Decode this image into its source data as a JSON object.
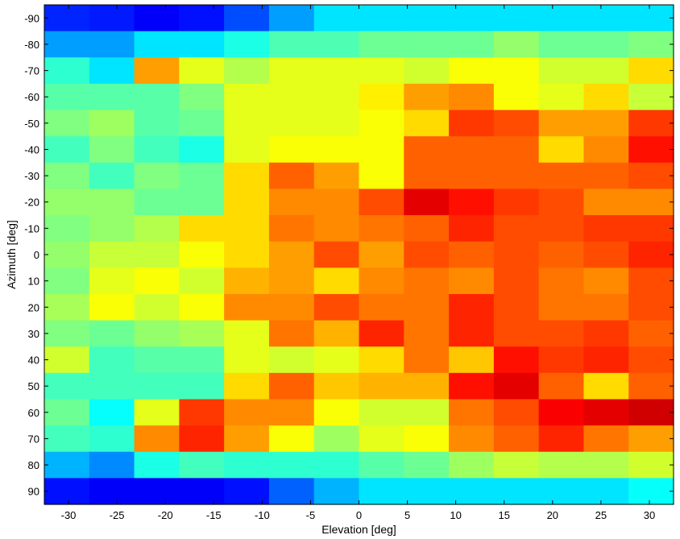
{
  "chart_data": {
    "type": "heatmap",
    "title": "",
    "xlabel": "Elevation [deg]",
    "ylabel": "Azimuth [deg]",
    "x": [
      -32.5,
      -27.5,
      -22.5,
      -17.5,
      -12.5,
      -7.5,
      -2.5,
      2.5,
      7.5,
      12.5,
      17.5,
      22.5,
      27.5,
      32.5
    ],
    "y": [
      -90,
      -80,
      -70,
      -60,
      -50,
      -40,
      -30,
      -20,
      -10,
      0,
      10,
      20,
      30,
      40,
      50,
      60,
      70,
      80,
      90
    ],
    "xlim": [
      -32.5,
      32.5
    ],
    "ylim": [
      -95,
      95
    ],
    "y_direction": "top-down",
    "xticks": [
      "-30",
      "-25",
      "-20",
      "-15",
      "-10",
      "-5",
      "0",
      "5",
      "10",
      "15",
      "20",
      "25",
      "30"
    ],
    "yticks": [
      "-90",
      "-80",
      "-70",
      "-60",
      "-50",
      "-40",
      "-30",
      "-20",
      "-10",
      "0",
      "10",
      "20",
      "30",
      "40",
      "50",
      "60",
      "70",
      "80",
      "90"
    ],
    "colormap": "jet",
    "value_range": [
      0,
      1
    ],
    "values": [
      [
        0.16,
        0.15,
        0.12,
        0.14,
        0.2,
        0.28,
        0.35,
        0.35,
        0.35,
        0.35,
        0.35,
        0.35,
        0.35,
        0.35
      ],
      [
        0.28,
        0.28,
        0.35,
        0.35,
        0.4,
        0.45,
        0.45,
        0.48,
        0.48,
        0.48,
        0.52,
        0.48,
        0.48,
        0.5
      ],
      [
        0.42,
        0.35,
        0.72,
        0.6,
        0.55,
        0.6,
        0.6,
        0.6,
        0.58,
        0.62,
        0.62,
        0.58,
        0.58,
        0.66
      ],
      [
        0.46,
        0.46,
        0.46,
        0.5,
        0.6,
        0.6,
        0.6,
        0.64,
        0.72,
        0.74,
        0.62,
        0.6,
        0.66,
        0.57
      ],
      [
        0.5,
        0.53,
        0.46,
        0.48,
        0.6,
        0.6,
        0.6,
        0.62,
        0.66,
        0.82,
        0.8,
        0.72,
        0.72,
        0.82
      ],
      [
        0.44,
        0.5,
        0.44,
        0.4,
        0.6,
        0.62,
        0.62,
        0.62,
        0.78,
        0.78,
        0.78,
        0.66,
        0.74,
        0.86
      ],
      [
        0.5,
        0.44,
        0.5,
        0.48,
        0.66,
        0.78,
        0.72,
        0.62,
        0.78,
        0.78,
        0.78,
        0.78,
        0.78,
        0.8
      ],
      [
        0.52,
        0.52,
        0.48,
        0.48,
        0.66,
        0.74,
        0.74,
        0.8,
        0.9,
        0.86,
        0.82,
        0.8,
        0.74,
        0.74
      ],
      [
        0.5,
        0.52,
        0.55,
        0.66,
        0.66,
        0.76,
        0.74,
        0.76,
        0.78,
        0.84,
        0.8,
        0.8,
        0.82,
        0.82
      ],
      [
        0.52,
        0.57,
        0.57,
        0.62,
        0.66,
        0.72,
        0.8,
        0.72,
        0.8,
        0.78,
        0.8,
        0.78,
        0.8,
        0.84
      ],
      [
        0.5,
        0.6,
        0.62,
        0.58,
        0.7,
        0.72,
        0.66,
        0.74,
        0.76,
        0.74,
        0.8,
        0.76,
        0.74,
        0.8
      ],
      [
        0.54,
        0.62,
        0.58,
        0.62,
        0.74,
        0.74,
        0.8,
        0.76,
        0.76,
        0.84,
        0.8,
        0.76,
        0.76,
        0.8
      ],
      [
        0.5,
        0.48,
        0.52,
        0.54,
        0.6,
        0.76,
        0.7,
        0.84,
        0.76,
        0.84,
        0.8,
        0.8,
        0.82,
        0.78
      ],
      [
        0.58,
        0.44,
        0.46,
        0.46,
        0.6,
        0.58,
        0.6,
        0.66,
        0.76,
        0.68,
        0.86,
        0.82,
        0.84,
        0.8
      ],
      [
        0.44,
        0.44,
        0.44,
        0.44,
        0.66,
        0.78,
        0.68,
        0.7,
        0.7,
        0.86,
        0.9,
        0.78,
        0.66,
        0.78
      ],
      [
        0.48,
        0.38,
        0.6,
        0.82,
        0.74,
        0.74,
        0.62,
        0.58,
        0.58,
        0.76,
        0.8,
        0.88,
        0.9,
        0.92
      ],
      [
        0.44,
        0.42,
        0.74,
        0.84,
        0.72,
        0.62,
        0.53,
        0.6,
        0.62,
        0.74,
        0.78,
        0.84,
        0.76,
        0.72
      ],
      [
        0.3,
        0.26,
        0.4,
        0.44,
        0.42,
        0.42,
        0.42,
        0.46,
        0.48,
        0.53,
        0.57,
        0.55,
        0.55,
        0.58
      ],
      [
        0.14,
        0.12,
        0.12,
        0.12,
        0.14,
        0.22,
        0.3,
        0.35,
        0.35,
        0.35,
        0.35,
        0.35,
        0.35,
        0.38
      ]
    ]
  }
}
